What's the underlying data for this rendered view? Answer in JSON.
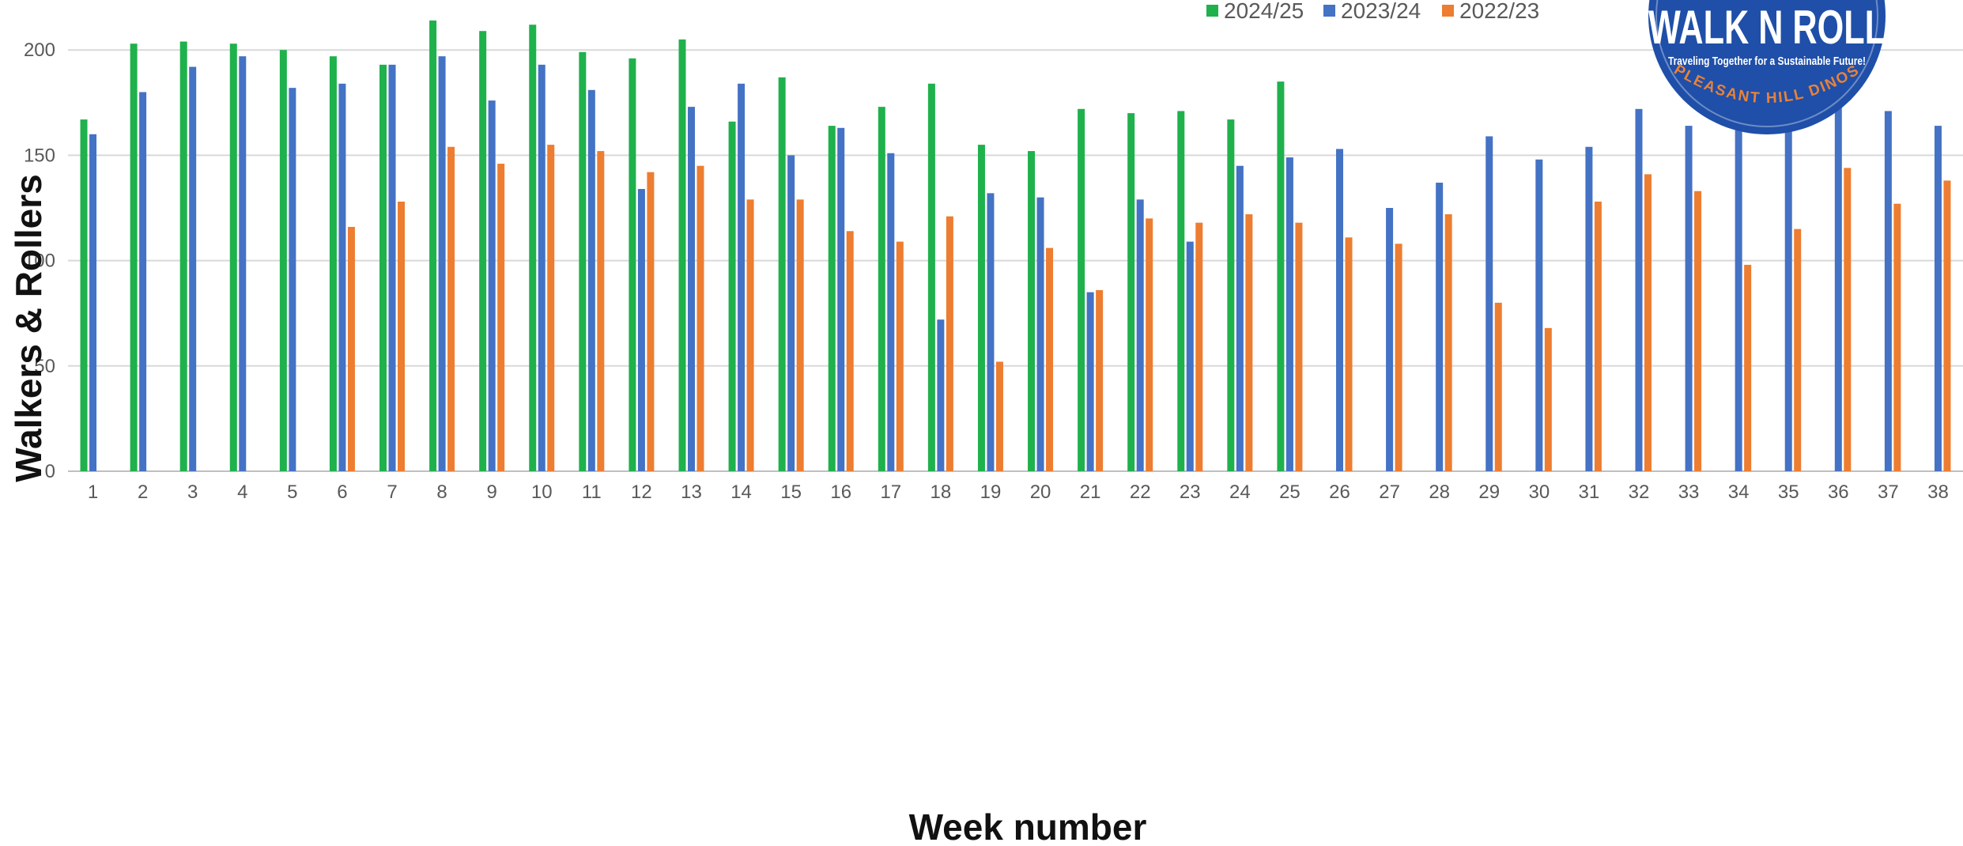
{
  "chart_data": {
    "type": "bar",
    "title": "",
    "xlabel": "Week number",
    "ylabel": "Walkers & Rollers",
    "ylim": [
      0,
      220
    ],
    "yticks": [
      0,
      50,
      100,
      150,
      200
    ],
    "grid": true,
    "legend_position": "top-right",
    "categories": [
      "1",
      "2",
      "3",
      "4",
      "5",
      "6",
      "7",
      "8",
      "9",
      "10",
      "11",
      "12",
      "13",
      "14",
      "15",
      "16",
      "17",
      "18",
      "19",
      "20",
      "21",
      "22",
      "23",
      "24",
      "25",
      "26",
      "27",
      "28",
      "29",
      "30",
      "31",
      "32",
      "33",
      "34",
      "35",
      "36",
      "37",
      "38"
    ],
    "series": [
      {
        "name": "2024/25",
        "color": "#1fb14c",
        "values": [
          167,
          203,
          204,
          203,
          200,
          197,
          193,
          214,
          209,
          212,
          199,
          196,
          205,
          166,
          187,
          164,
          173,
          184,
          155,
          152,
          172,
          170,
          171,
          167,
          185,
          null,
          null,
          null,
          null,
          null,
          null,
          null,
          null,
          null,
          null,
          null,
          null,
          null
        ]
      },
      {
        "name": "2023/24",
        "color": "#4472c4",
        "values": [
          160,
          180,
          192,
          197,
          182,
          184,
          193,
          197,
          176,
          193,
          181,
          134,
          173,
          184,
          150,
          163,
          151,
          72,
          132,
          130,
          85,
          129,
          109,
          145,
          149,
          153,
          125,
          137,
          159,
          148,
          154,
          172,
          164,
          163,
          163,
          180,
          171,
          164
        ]
      },
      {
        "name": "2022/23",
        "color": "#ed7d31",
        "values": [
          null,
          null,
          null,
          null,
          null,
          116,
          128,
          154,
          146,
          155,
          152,
          142,
          145,
          129,
          129,
          114,
          109,
          121,
          52,
          106,
          86,
          120,
          118,
          122,
          118,
          111,
          108,
          122,
          80,
          68,
          128,
          141,
          133,
          98,
          115,
          144,
          127,
          138
        ]
      }
    ]
  },
  "logo": {
    "title": "WALK N ROLL",
    "tagline": "Traveling Together for a Sustainable Future!",
    "bottom_text": "PLEASANT HILL DINOS",
    "bg_color": "#1f4fa8",
    "accent_color": "#e8823a"
  }
}
